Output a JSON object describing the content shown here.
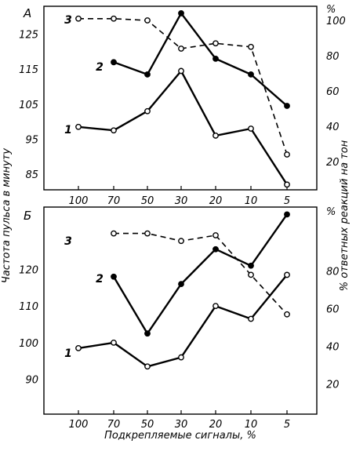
{
  "chart_data": {
    "type": "line",
    "x_label": "Подкрепляемые сигналы, %",
    "y_label_left": "Частота пульса в минуту",
    "y_label_right": "% ответных реакций на тон",
    "right_unit": "%",
    "categories": [
      "100",
      "70",
      "50",
      "30",
      "20",
      "10",
      "5"
    ],
    "panels": [
      {
        "letter": "А",
        "left_ticks": [
          85,
          95,
          105,
          115,
          125
        ],
        "left_ylim": [
          80.5,
          133
        ],
        "right_ticks": [
          20,
          40,
          60,
          80,
          100
        ],
        "right_ylim": [
          4,
          108
        ],
        "series": [
          {
            "label": "1",
            "axis": "left",
            "style": "solid",
            "marker": "open",
            "values": [
              98.5,
              97.5,
              103,
              114.5,
              96,
              98,
              82
            ]
          },
          {
            "label": "2",
            "axis": "left",
            "style": "solid",
            "marker": "filled",
            "values": [
              null,
              117,
              113.5,
              131,
              118,
              113.5,
              104.5
            ]
          },
          {
            "label": "3",
            "axis": "right",
            "style": "dashed",
            "marker": "open",
            "values": [
              101,
              101,
              100,
              84,
              87,
              85,
              24
            ]
          }
        ]
      },
      {
        "letter": "Б",
        "left_ticks": [
          90,
          100,
          110,
          120
        ],
        "left_ylim": [
          80.5,
          137
        ],
        "right_ticks": [
          20,
          40,
          60,
          80
        ],
        "right_ylim": [
          4,
          114
        ],
        "series": [
          {
            "label": "1",
            "axis": "left",
            "style": "solid",
            "marker": "open",
            "values": [
              98.5,
              100,
              93.5,
              96,
              110,
              106.5,
              118.5
            ]
          },
          {
            "label": "2",
            "axis": "left",
            "style": "solid",
            "marker": "filled",
            "values": [
              null,
              118,
              102.5,
              116,
              125.5,
              121,
              135
            ]
          },
          {
            "label": "3",
            "axis": "right",
            "style": "dashed",
            "marker": "open",
            "values": [
              null,
              100,
              100,
              96,
              99,
              78,
              57
            ]
          }
        ]
      }
    ]
  }
}
